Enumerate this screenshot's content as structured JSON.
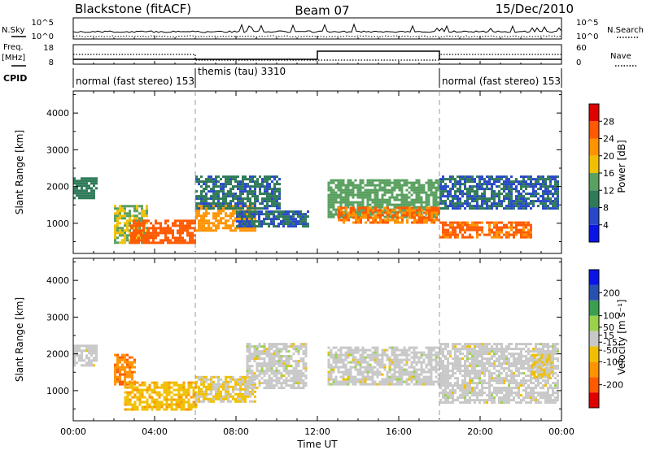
{
  "header": {
    "station": "Blackstone (fitACF)",
    "beam": "Beam 07",
    "date": "15/Dec/2010"
  },
  "status_panels": {
    "nsky_label": "N.Sky",
    "nsearch_label": "N.Search",
    "freq_label_line1": "Freq.",
    "freq_label_line2": "[MHz]",
    "nave_label": "Nave",
    "cpid_label": "CPID",
    "n_ticks": [
      "10^5",
      "10^0"
    ],
    "n_ticks_right": [
      "10^5",
      "10^0"
    ],
    "freq_ticks": [
      "18",
      "8"
    ],
    "nave_ticks": [
      "60",
      "0"
    ],
    "cpid_segments": [
      {
        "name": "normal (fast stereo) 153",
        "start_h": 0,
        "end_h": 6
      },
      {
        "name": "themis (tau) 3310",
        "start_h": 6,
        "end_h": 18
      },
      {
        "name": "normal (fast stereo) 153",
        "start_h": 18,
        "end_h": 24
      }
    ]
  },
  "power_panel": {
    "ylabel": "Slant Range [km]",
    "cbar_label": "Power [dB]",
    "cbar_ticks": [
      "28",
      "24",
      "20",
      "16",
      "12",
      "8",
      "4"
    ]
  },
  "velocity_panel": {
    "ylabel": "Slant Range [km]",
    "cbar_label": "Velocity [m s⁻¹]",
    "cbar_ticks": [
      "200",
      "100",
      "50",
      "15",
      "-15",
      "-50",
      "-100",
      "-200"
    ]
  },
  "xaxis": {
    "label": "Time UT",
    "ticks": [
      "00:00",
      "04:00",
      "08:00",
      "12:00",
      "16:00",
      "20:00",
      "00:00"
    ]
  },
  "chart_data": [
    {
      "type": "heatmap",
      "name": "Power",
      "xlabel": "Time UT",
      "ylabel": "Slant Range [km]",
      "xlim": [
        0,
        24
      ],
      "ylim": [
        180,
        4600
      ],
      "yticks": [
        1000,
        2000,
        3000,
        4000
      ],
      "colorbar": {
        "label": "Power [dB]",
        "range": [
          0,
          32
        ],
        "ticks": [
          4,
          8,
          12,
          16,
          20,
          24,
          28
        ]
      },
      "colors": [
        "#0a14e6",
        "#2848c8",
        "#2f7a58",
        "#5aa060",
        "#f0c000",
        "#ff9400",
        "#ff5a00",
        "#e00000"
      ],
      "regions": [
        {
          "t0": 0.0,
          "t1": 1.2,
          "r0": 1700,
          "r1": 2250,
          "value": 10
        },
        {
          "t0": 2.0,
          "t1": 3.6,
          "r0": 500,
          "r1": 1500,
          "value": 16
        },
        {
          "t0": 2.8,
          "t1": 6.0,
          "r0": 500,
          "r1": 1100,
          "value": 26
        },
        {
          "t0": 6.0,
          "t1": 9.0,
          "r0": 800,
          "r1": 1500,
          "value": 22
        },
        {
          "t0": 6.0,
          "t1": 10.2,
          "r0": 1400,
          "r1": 2300,
          "value": 9
        },
        {
          "t0": 8.0,
          "t1": 11.5,
          "r0": 900,
          "r1": 1350,
          "value": 8
        },
        {
          "t0": 12.5,
          "t1": 18.0,
          "r0": 1150,
          "r1": 2200,
          "value": 14
        },
        {
          "t0": 13.0,
          "t1": 18.0,
          "r0": 1000,
          "r1": 1450,
          "value": 24
        },
        {
          "t0": 18.0,
          "t1": 23.8,
          "r0": 1400,
          "r1": 2300,
          "value": 8
        },
        {
          "t0": 18.0,
          "t1": 22.5,
          "r0": 650,
          "r1": 1050,
          "value": 25
        }
      ]
    },
    {
      "type": "heatmap",
      "name": "Velocity",
      "xlabel": "Time UT",
      "ylabel": "Slant Range [km]",
      "xlim": [
        0,
        24
      ],
      "ylim": [
        180,
        4600
      ],
      "yticks": [
        1000,
        2000,
        3000,
        4000
      ],
      "colorbar": {
        "label": "Velocity [m s⁻¹]",
        "range": [
          -300,
          300
        ],
        "ticks": [
          -200,
          -100,
          -50,
          -15,
          15,
          50,
          100,
          200
        ]
      },
      "colors": [
        "#e00000",
        "#ff5a00",
        "#ff9400",
        "#f0c000",
        "#c8c8c8",
        "#9ad24a",
        "#3aa050",
        "#2850b0",
        "#0a14e6"
      ],
      "regions": [
        {
          "t0": 0.0,
          "t1": 1.2,
          "r0": 1700,
          "r1": 2250,
          "value": 0
        },
        {
          "t0": 2.0,
          "t1": 3.0,
          "r0": 1200,
          "r1": 2000,
          "value": -150
        },
        {
          "t0": 2.5,
          "t1": 6.0,
          "r0": 500,
          "r1": 1250,
          "value": -80
        },
        {
          "t0": 6.0,
          "t1": 9.0,
          "r0": 700,
          "r1": 1400,
          "value": -40
        },
        {
          "t0": 8.5,
          "t1": 11.5,
          "r0": 1100,
          "r1": 2300,
          "value": 0
        },
        {
          "t0": 12.5,
          "t1": 18.0,
          "r0": 1150,
          "r1": 2200,
          "value": 0
        },
        {
          "t0": 18.0,
          "t1": 23.8,
          "r0": 650,
          "r1": 2300,
          "value": 0
        },
        {
          "t0": 22.5,
          "t1": 23.5,
          "r0": 1400,
          "r1": 2000,
          "value": -30
        }
      ]
    }
  ]
}
